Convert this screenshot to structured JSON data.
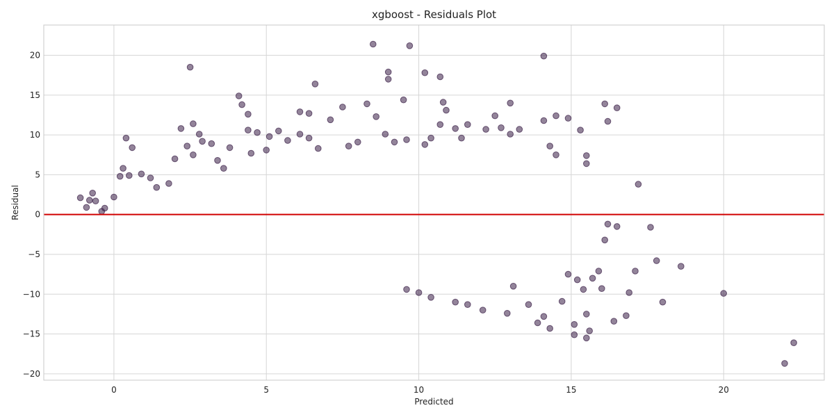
{
  "chart_data": {
    "type": "scatter",
    "title": "xgboost - Residuals Plot",
    "xlabel": "Predicted",
    "ylabel": "Residual",
    "xlim": [
      -2.3,
      23.3
    ],
    "ylim": [
      -20.8,
      23.8
    ],
    "xticks": [
      0,
      5,
      10,
      15,
      20
    ],
    "yticks": [
      -20,
      -15,
      -10,
      -5,
      0,
      5,
      10,
      15,
      20
    ],
    "grid": true,
    "reference_line": {
      "y": 0,
      "color": "#d00000"
    },
    "marker_color": "#3b1f47",
    "series": [
      {
        "points": [
          [
            -1.1,
            2.1
          ],
          [
            -0.9,
            0.9
          ],
          [
            -0.8,
            1.8
          ],
          [
            -0.7,
            2.7
          ],
          [
            -0.6,
            1.7
          ],
          [
            -0.4,
            0.4
          ],
          [
            -0.3,
            0.8
          ],
          [
            0.0,
            2.2
          ],
          [
            0.4,
            9.6
          ],
          [
            0.6,
            8.4
          ],
          [
            0.2,
            4.8
          ],
          [
            0.3,
            5.8
          ],
          [
            0.5,
            4.9
          ],
          [
            0.9,
            5.1
          ],
          [
            1.2,
            4.6
          ],
          [
            1.4,
            3.4
          ],
          [
            1.8,
            3.9
          ],
          [
            2.0,
            7.0
          ],
          [
            2.2,
            10.8
          ],
          [
            2.5,
            18.5
          ],
          [
            2.4,
            8.6
          ],
          [
            2.6,
            7.5
          ],
          [
            2.6,
            11.4
          ],
          [
            2.8,
            10.1
          ],
          [
            2.9,
            9.2
          ],
          [
            3.2,
            8.9
          ],
          [
            3.4,
            6.8
          ],
          [
            3.6,
            5.8
          ],
          [
            3.8,
            8.4
          ],
          [
            4.1,
            14.9
          ],
          [
            4.2,
            13.8
          ],
          [
            4.4,
            12.6
          ],
          [
            4.4,
            10.6
          ],
          [
            4.7,
            10.3
          ],
          [
            4.5,
            7.7
          ],
          [
            5.0,
            8.1
          ],
          [
            5.1,
            9.8
          ],
          [
            5.4,
            10.5
          ],
          [
            5.7,
            9.3
          ],
          [
            6.1,
            10.1
          ],
          [
            6.1,
            12.9
          ],
          [
            6.4,
            12.7
          ],
          [
            6.4,
            9.6
          ],
          [
            6.6,
            16.4
          ],
          [
            6.7,
            8.3
          ],
          [
            7.1,
            11.9
          ],
          [
            7.5,
            13.5
          ],
          [
            7.7,
            8.6
          ],
          [
            8.0,
            9.1
          ],
          [
            8.3,
            13.9
          ],
          [
            8.5,
            21.4
          ],
          [
            8.6,
            12.3
          ],
          [
            8.9,
            10.1
          ],
          [
            9.0,
            17.9
          ],
          [
            9.0,
            17.0
          ],
          [
            9.2,
            9.1
          ],
          [
            9.5,
            14.4
          ],
          [
            9.7,
            21.2
          ],
          [
            9.6,
            9.4
          ],
          [
            10.2,
            17.8
          ],
          [
            10.2,
            8.8
          ],
          [
            10.4,
            9.6
          ],
          [
            10.7,
            17.3
          ],
          [
            10.8,
            14.1
          ],
          [
            10.9,
            13.1
          ],
          [
            10.7,
            11.3
          ],
          [
            11.2,
            10.8
          ],
          [
            11.4,
            9.6
          ],
          [
            11.6,
            11.3
          ],
          [
            12.2,
            10.7
          ],
          [
            12.5,
            12.4
          ],
          [
            12.7,
            10.9
          ],
          [
            13.0,
            14.0
          ],
          [
            13.0,
            10.1
          ],
          [
            13.3,
            10.7
          ],
          [
            14.1,
            19.9
          ],
          [
            14.1,
            11.8
          ],
          [
            14.5,
            12.4
          ],
          [
            14.5,
            7.5
          ],
          [
            14.3,
            8.6
          ],
          [
            14.9,
            12.1
          ],
          [
            15.3,
            10.6
          ],
          [
            15.5,
            7.4
          ],
          [
            15.5,
            6.4
          ],
          [
            16.1,
            13.9
          ],
          [
            16.2,
            11.7
          ],
          [
            16.5,
            13.4
          ],
          [
            17.2,
            3.8
          ],
          [
            16.2,
            -1.2
          ],
          [
            16.5,
            -1.5
          ],
          [
            16.1,
            -3.2
          ],
          [
            17.1,
            -7.1
          ],
          [
            17.6,
            -1.6
          ],
          [
            17.8,
            -5.8
          ],
          [
            18.0,
            -11.0
          ],
          [
            18.6,
            -6.5
          ],
          [
            16.4,
            -13.4
          ],
          [
            16.8,
            -12.7
          ],
          [
            16.9,
            -9.8
          ],
          [
            16.0,
            -9.3
          ],
          [
            15.9,
            -7.1
          ],
          [
            15.7,
            -8.0
          ],
          [
            15.5,
            -15.5
          ],
          [
            15.6,
            -14.6
          ],
          [
            15.1,
            -15.1
          ],
          [
            15.1,
            -13.8
          ],
          [
            15.5,
            -12.5
          ],
          [
            15.4,
            -9.4
          ],
          [
            15.2,
            -8.2
          ],
          [
            14.9,
            -7.5
          ],
          [
            14.7,
            -10.9
          ],
          [
            14.3,
            -14.3
          ],
          [
            13.9,
            -13.6
          ],
          [
            14.1,
            -12.8
          ],
          [
            13.6,
            -11.3
          ],
          [
            13.1,
            -9.0
          ],
          [
            12.9,
            -12.4
          ],
          [
            12.1,
            -12.0
          ],
          [
            11.6,
            -11.3
          ],
          [
            11.2,
            -11.0
          ],
          [
            10.4,
            -10.4
          ],
          [
            10.0,
            -9.8
          ],
          [
            9.6,
            -9.4
          ],
          [
            22.0,
            -18.7
          ],
          [
            22.3,
            -16.1
          ],
          [
            20.0,
            -9.9
          ]
        ]
      }
    ]
  }
}
